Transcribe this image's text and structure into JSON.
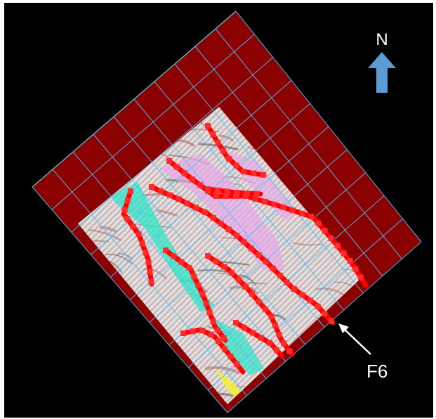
{
  "north_arrow": {
    "label": "N",
    "color": "#5b9bd5"
  },
  "fault_callout": {
    "label": "F6"
  },
  "colors": {
    "background": "#000000",
    "survey_outline": "#8b0000",
    "grid_lines": "#4fc3f7",
    "fault_sticks": "#ff0000",
    "seismic_base": "#e8e2e2",
    "cyan_zone": "#2ee6c8",
    "pink_zone": "#e8a6e8",
    "yellow_zone": "#f2ee3a",
    "callout_arrow": "#ffffff"
  }
}
